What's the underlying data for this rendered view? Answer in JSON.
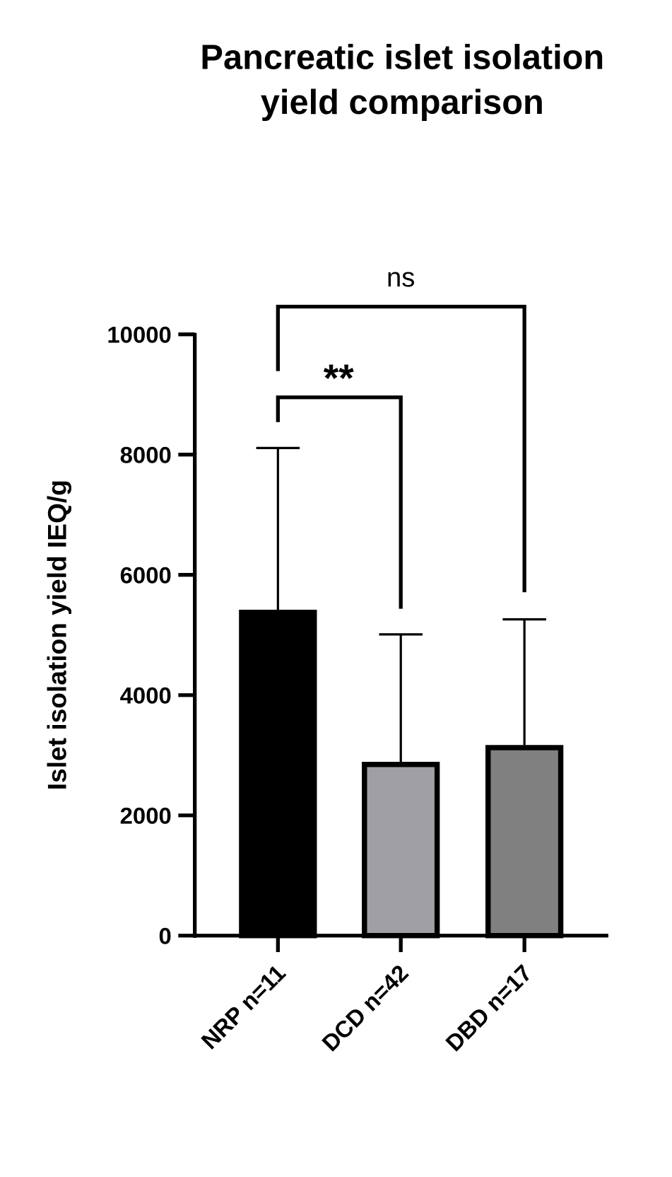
{
  "chart_data": {
    "type": "bar",
    "title": [
      "Pancreatic islet isolation",
      "yield comparison"
    ],
    "xlabel": "",
    "ylabel": "Islet isolation yield IEQ/g",
    "ylim": [
      0,
      10000
    ],
    "yticks": [
      0,
      2000,
      4000,
      6000,
      8000,
      10000
    ],
    "categories": [
      "NRP n=11",
      "DCD n=42",
      "DBD n=17"
    ],
    "values": [
      5420,
      2890,
      3170
    ],
    "error_upper": [
      8110,
      5010,
      5260
    ],
    "colors": [
      "#000000",
      "#a0a0a4",
      "#808080"
    ],
    "significance": [
      {
        "from": 0,
        "to": 2,
        "label": "ns"
      },
      {
        "from": 0,
        "to": 1,
        "label": "**"
      }
    ]
  }
}
